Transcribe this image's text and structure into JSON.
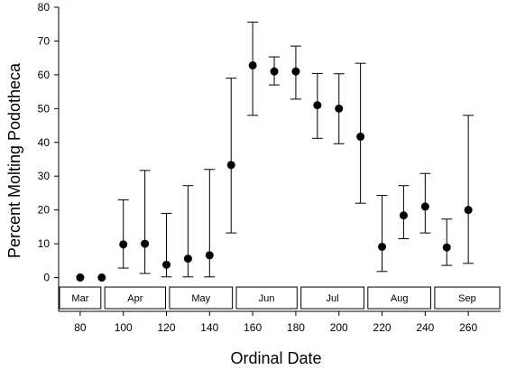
{
  "chart_data": {
    "type": "scatter",
    "title": "",
    "xlabel": "Ordinal Date",
    "ylabel": "Percent Molting Podotheca",
    "xlim": [
      70,
      275
    ],
    "ylim": [
      -10,
      80
    ],
    "x_ticks": [
      80,
      100,
      120,
      140,
      160,
      180,
      200,
      220,
      240,
      260
    ],
    "y_ticks": [
      0,
      10,
      20,
      30,
      40,
      50,
      60,
      70,
      80
    ],
    "grid": false,
    "legend": "none",
    "marker_color": "#000000",
    "error_bars": "vertical",
    "series": [
      {
        "x": [
          80,
          90,
          100,
          110,
          120,
          130,
          140,
          150,
          160,
          170,
          180,
          190,
          200,
          210,
          220,
          230,
          240,
          250,
          260
        ],
        "y": [
          0,
          0,
          9.8,
          10,
          3.8,
          5.6,
          6.6,
          33.3,
          62.8,
          61,
          61,
          51,
          50,
          41.7,
          9.1,
          18.4,
          21,
          8.9,
          20
        ],
        "lower": [
          null,
          null,
          2.8,
          1.2,
          0.2,
          0.2,
          0.2,
          13.2,
          48,
          57,
          52.8,
          41.2,
          39.6,
          22,
          1.8,
          11.5,
          13.2,
          3.6,
          4.2
        ],
        "upper": [
          null,
          null,
          23,
          31.7,
          19,
          27.2,
          32,
          59,
          75.6,
          65.3,
          68.5,
          60.4,
          60.3,
          63.4,
          24.3,
          27.2,
          30.8,
          17.3,
          48
        ]
      }
    ],
    "months": [
      {
        "label": "Mar",
        "start": 70,
        "end": 90
      },
      {
        "label": "Apr",
        "start": 91,
        "end": 120
      },
      {
        "label": "May",
        "start": 121,
        "end": 151
      },
      {
        "label": "Jun",
        "start": 152,
        "end": 181
      },
      {
        "label": "Jul",
        "start": 182,
        "end": 212
      },
      {
        "label": "Aug",
        "start": 213,
        "end": 243
      },
      {
        "label": "Sep",
        "start": 244,
        "end": 275
      }
    ]
  }
}
